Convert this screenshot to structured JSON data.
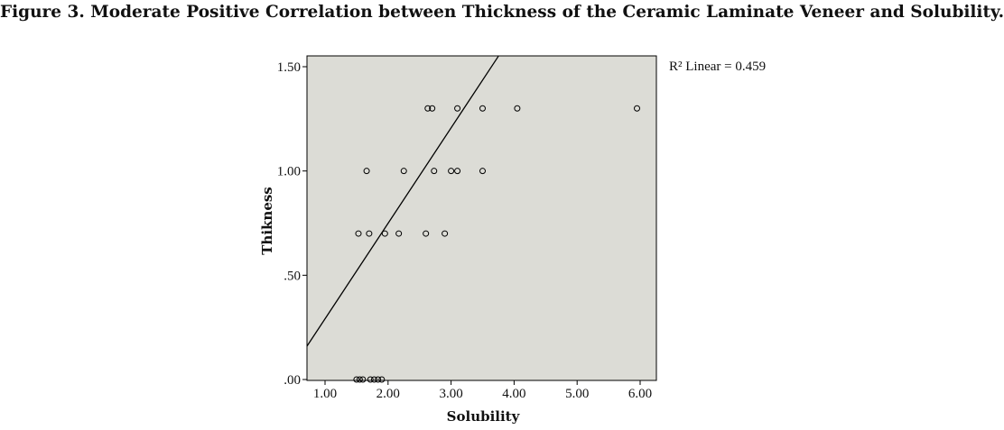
{
  "figure": {
    "title": "Figure 3. Moderate Positive Correlation between Thickness of the Ceramic Laminate Veneer and Solubility."
  },
  "chart_data": {
    "type": "scatter",
    "title": "",
    "xlabel": "Solubility",
    "ylabel": "Thikness",
    "xlim": [
      0.7,
      6.25
    ],
    "ylim": [
      0.0,
      1.55
    ],
    "x_ticks": [
      1.0,
      2.0,
      3.0,
      4.0,
      5.0,
      6.0
    ],
    "x_tick_labels": [
      "1.00",
      "2.00",
      "3.00",
      "4.00",
      "5.00",
      "6.00"
    ],
    "y_ticks": [
      0.0,
      0.5,
      1.0,
      1.5
    ],
    "y_tick_labels": [
      ".00",
      ".50",
      "1.00",
      "1.50"
    ],
    "points": [
      {
        "x": 1.5,
        "y": 0.0
      },
      {
        "x": 1.55,
        "y": 0.0
      },
      {
        "x": 1.6,
        "y": 0.0
      },
      {
        "x": 1.72,
        "y": 0.0
      },
      {
        "x": 1.78,
        "y": 0.0
      },
      {
        "x": 1.84,
        "y": 0.0
      },
      {
        "x": 1.9,
        "y": 0.0
      },
      {
        "x": 1.53,
        "y": 0.7
      },
      {
        "x": 1.7,
        "y": 0.7
      },
      {
        "x": 1.95,
        "y": 0.7
      },
      {
        "x": 2.17,
        "y": 0.7
      },
      {
        "x": 2.6,
        "y": 0.7
      },
      {
        "x": 2.9,
        "y": 0.7
      },
      {
        "x": 1.66,
        "y": 1.0
      },
      {
        "x": 2.25,
        "y": 1.0
      },
      {
        "x": 2.73,
        "y": 1.0
      },
      {
        "x": 3.0,
        "y": 1.0
      },
      {
        "x": 3.1,
        "y": 1.0
      },
      {
        "x": 3.5,
        "y": 1.0
      },
      {
        "x": 2.63,
        "y": 1.3
      },
      {
        "x": 2.7,
        "y": 1.3
      },
      {
        "x": 3.1,
        "y": 1.3
      },
      {
        "x": 3.5,
        "y": 1.3
      },
      {
        "x": 4.05,
        "y": 1.3
      },
      {
        "x": 5.95,
        "y": 1.3
      }
    ],
    "fit_line": {
      "label": "R² Linear = 0.459",
      "x": [
        0.7,
        3.75
      ],
      "y": [
        0.16,
        1.55
      ]
    },
    "grid": false,
    "legend_position": "top-right",
    "colors": {
      "plot_background": "#dcdcd6",
      "marker_stroke": "#000000",
      "line": "#000000"
    }
  }
}
